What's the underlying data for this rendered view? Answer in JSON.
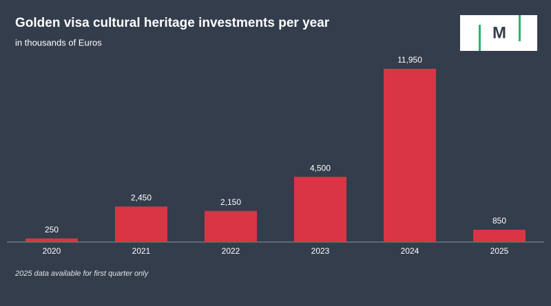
{
  "chart_data": {
    "type": "bar",
    "title": "Golden visa cultural heritage investments per year",
    "subtitle": "in thousands of Euros",
    "categories": [
      "2020",
      "2021",
      "2022",
      "2023",
      "2024",
      "2025"
    ],
    "values": [
      250,
      2450,
      2150,
      4500,
      11950,
      850
    ],
    "value_labels": [
      "250",
      "2,450",
      "2,150",
      "4,500",
      "11,950",
      "850"
    ],
    "color": "#d93545",
    "note": "2025 data available for first quarter only"
  },
  "logo": "M"
}
